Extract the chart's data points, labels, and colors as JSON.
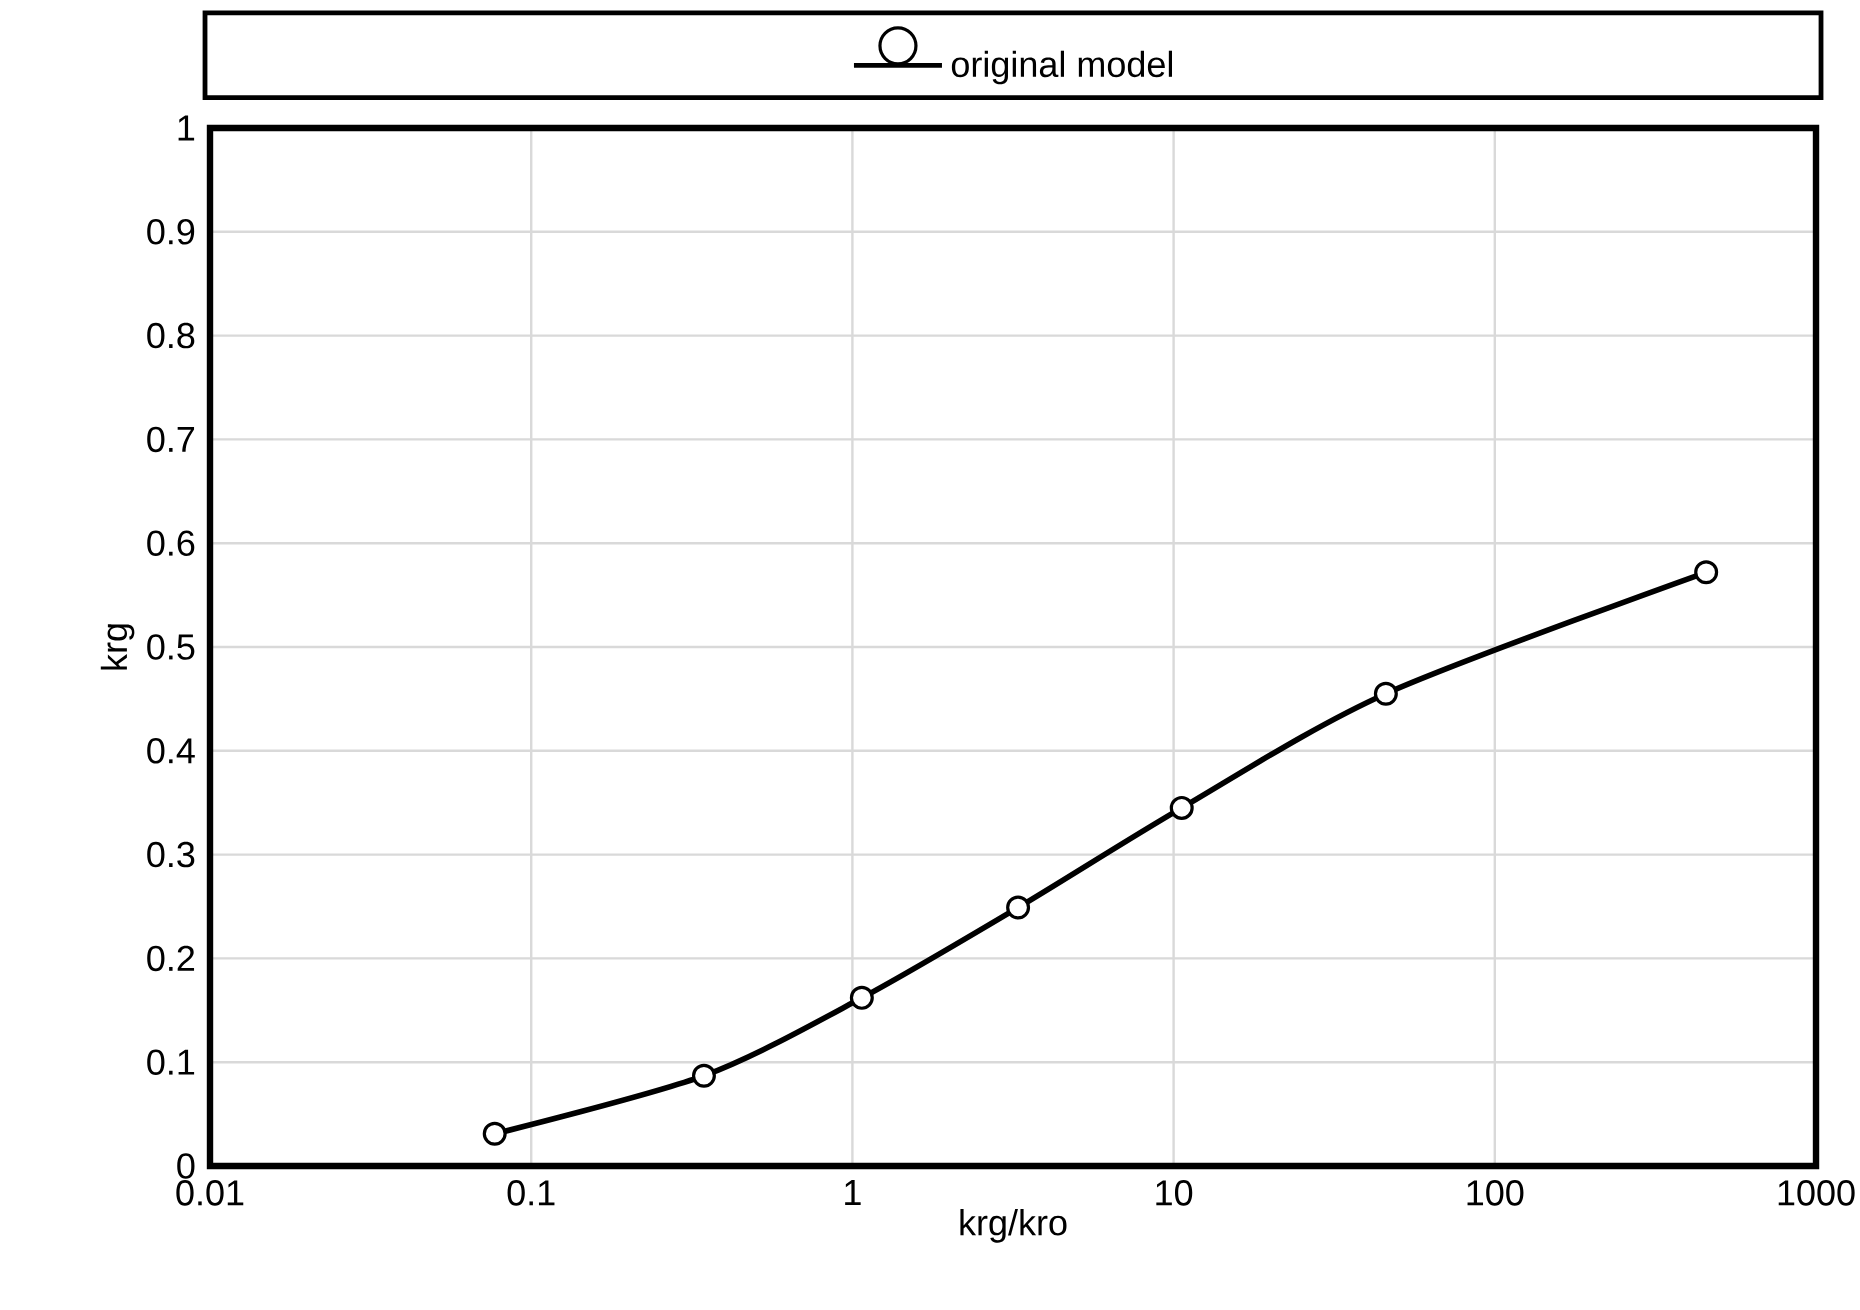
{
  "chart_data": {
    "type": "line",
    "xlabel": "krg/kro",
    "ylabel": "krg",
    "log": "x",
    "x": [
      0.077,
      0.345,
      1.07,
      3.28,
      10.6,
      45.8,
      455
    ],
    "series": [
      {
        "name": "original model",
        "color": "#000000",
        "values": [
          0.031,
          0.087,
          0.162,
          0.249,
          0.345,
          0.455,
          0.572
        ]
      }
    ],
    "xlim": [
      0.01,
      1000
    ],
    "xticks": [
      0.01,
      0.1,
      1,
      10,
      100,
      1000
    ],
    "ylim": [
      0,
      1
    ],
    "yticks": [
      0,
      0.1,
      0.2,
      0.3,
      0.4,
      0.5,
      0.6,
      0.7,
      0.8,
      0.9,
      1
    ],
    "grid": true,
    "legend": "top",
    "marker": "circle",
    "line_style": "solid"
  }
}
